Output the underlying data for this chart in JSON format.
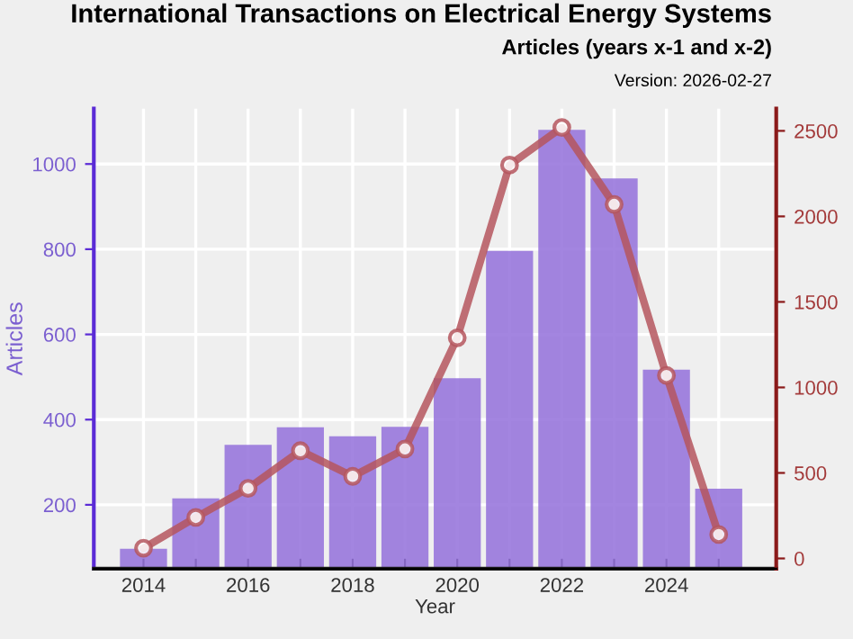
{
  "chart_data": {
    "type": "bar",
    "title": "International Transactions on Electrical Energy Systems",
    "subtitle": "Articles (years x-1 and x-2)",
    "annotations": [
      "Version: 2026-02-27"
    ],
    "xlabel": "Year",
    "ylabel": "Articles",
    "x": [
      2014,
      2015,
      2016,
      2017,
      2018,
      2019,
      2020,
      2021,
      2022,
      2023,
      2024,
      2025
    ],
    "series": [
      {
        "color": "#9370db",
        "values": [
          97,
          215,
          341,
          382,
          361,
          383,
          497,
          796,
          1080,
          966,
          517,
          238
        ]
      },
      {
        "type": "line",
        "axis": "y2",
        "color": "#b5565e",
        "marker": "circle",
        "values": [
          60,
          240,
          410,
          630,
          480,
          640,
          1290,
          2300,
          2520,
          2070,
          1070,
          140
        ]
      }
    ],
    "xlim": [
      2013.05,
      2026.1
    ],
    "xticks": [
      2014,
      {
        "value": 2015,
        "label": null
      },
      2016,
      {
        "value": 2017,
        "label": null
      },
      2018,
      {
        "value": 2019,
        "label": null
      },
      2020,
      {
        "value": 2021,
        "label": null
      },
      2022,
      {
        "value": 2023,
        "label": null
      },
      2024,
      {
        "value": 2025,
        "label": null
      }
    ],
    "ylim": [
      50,
      1130
    ],
    "yticks": [
      200,
      400,
      600,
      800,
      1000
    ],
    "y2lim": [
      -60,
      2630
    ],
    "y2ticks": [
      0,
      500,
      1000,
      1500,
      2000,
      2500
    ],
    "grid": true
  }
}
